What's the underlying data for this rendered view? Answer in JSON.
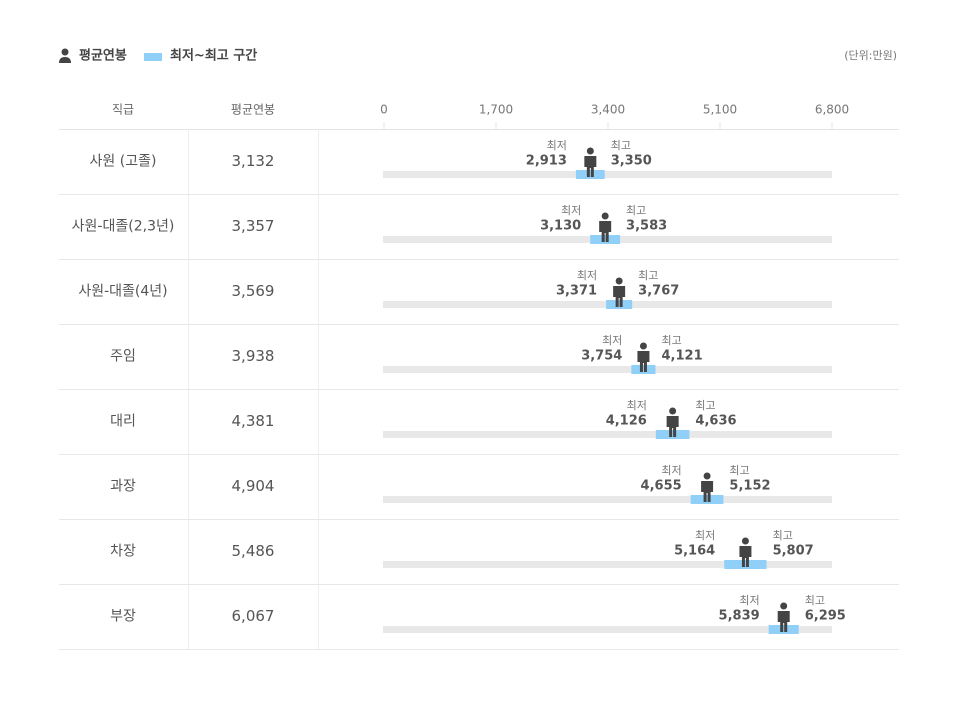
{
  "chart_data": {
    "type": "range",
    "legend_range": "최저~최고 구간",
    "unit": "(단위:만원)",
    "headers": [
      "직급",
      "평균연봉"
    ],
    "xlim": [
      0,
      6800
    ],
    "xticks": [
      0,
      {
        "value": 1700,
        "label": "1,700"
      },
      {
        "value": 3400,
        "label": "3,400"
      },
      {
        "value": 5100,
        "label": "5,100"
      },
      {
        "value": 6800,
        "label": "6,800"
      }
    ],
    "categories": [
      "사원 (고졸)",
      "사원-대졸(2,3년)",
      "사원-대졸(4년)",
      "주임",
      "대리",
      "과장",
      "차장",
      "부장"
    ],
    "series": [
      {
        "name": "평균연봉",
        "color": "#444444",
        "values": [
          3132,
          3357,
          3569,
          3938,
          4381,
          4904,
          5486,
          6067
        ],
        "value_labels": [
          "3,132",
          "3,357",
          "3,569",
          "3,938",
          "4,381",
          "4,904",
          "5,486",
          "6,067"
        ]
      },
      {
        "name": "최저",
        "values": [
          2913,
          3130,
          3371,
          3754,
          4126,
          4655,
          5164,
          5839
        ],
        "value_labels": [
          "2,913",
          "3,130",
          "3,371",
          "3,754",
          "4,126",
          "4,655",
          "5,164",
          "5,839"
        ]
      },
      {
        "name": "최고",
        "values": [
          3350,
          3583,
          3767,
          4121,
          4636,
          5152,
          5807,
          6295
        ],
        "value_labels": [
          "3,350",
          "3,583",
          "3,767",
          "4,121",
          "4,636",
          "5,152",
          "5,807",
          "6,295"
        ]
      }
    ],
    "range_color": "#90d0f8",
    "track_color": "#e8e8e8"
  }
}
